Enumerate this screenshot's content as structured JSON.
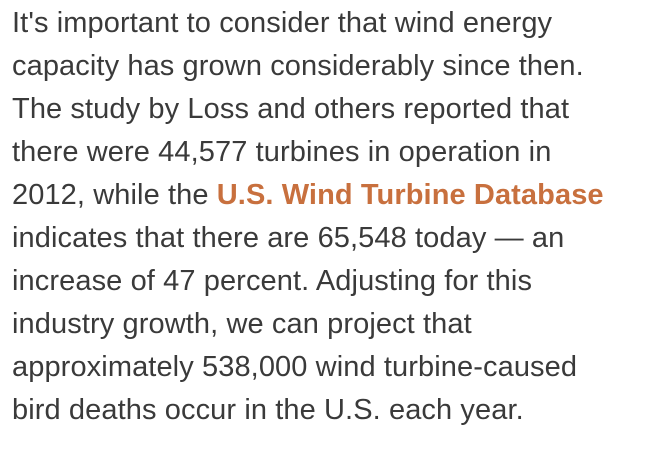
{
  "article": {
    "lines": {
      "l1": "It's important to consider that wind energy",
      "l2": "capacity has grown considerably since then.",
      "l3": "The study by Loss and others reported that",
      "l4": "there were 44,577 turbines in operation in",
      "l5_pre": "2012, while the ",
      "l5_link": "U.S. Wind Turbine Database",
      "l6": "indicates that there are 65,548 today — an",
      "l7": "increase of 47 percent. Adjusting for this",
      "l8": "industry growth, we can project that",
      "l9": "approximately 538,000 wind turbine-caused",
      "l10": "bird deaths occur in the U.S. each year."
    },
    "link_color": "#c8703e",
    "text_color": "#3a3a3a"
  }
}
